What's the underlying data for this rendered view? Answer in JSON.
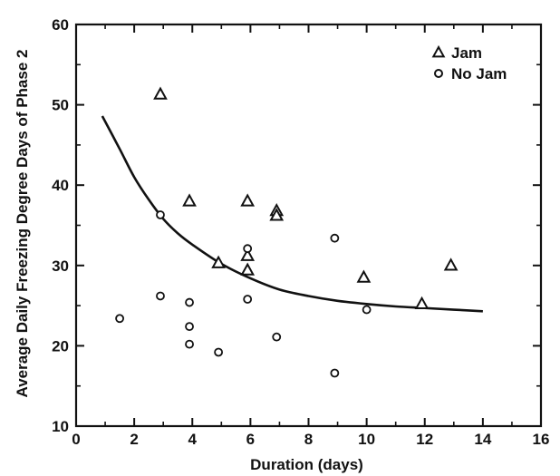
{
  "chart_data": {
    "type": "scatter",
    "xlabel": "Duration (days)",
    "ylabel": "Average Daily Freezing Degree Days of Phase 2",
    "xlim": [
      0,
      16
    ],
    "ylim": [
      10,
      60
    ],
    "x_ticks": [
      0,
      2,
      4,
      6,
      8,
      10,
      12,
      14,
      16
    ],
    "y_ticks": [
      10,
      20,
      30,
      40,
      50,
      60
    ],
    "x_tick_labels": [
      "0",
      "2",
      "4",
      "6",
      "8",
      "10",
      "12",
      "14",
      "16"
    ],
    "y_tick_labels": [
      "10",
      "20",
      "30",
      "40",
      "50",
      "60"
    ],
    "grid": false,
    "legend_position": "top-right",
    "series": [
      {
        "name": "Jam",
        "marker": "triangle",
        "points": [
          {
            "x": 2.9,
            "y": 51.3
          },
          {
            "x": 3.9,
            "y": 38.0
          },
          {
            "x": 4.9,
            "y": 30.3
          },
          {
            "x": 5.9,
            "y": 38.0
          },
          {
            "x": 5.9,
            "y": 31.2
          },
          {
            "x": 5.9,
            "y": 29.4
          },
          {
            "x": 6.9,
            "y": 36.8
          },
          {
            "x": 6.9,
            "y": 36.2
          },
          {
            "x": 9.9,
            "y": 28.5
          },
          {
            "x": 11.9,
            "y": 25.2
          },
          {
            "x": 12.9,
            "y": 30.0
          }
        ]
      },
      {
        "name": "No Jam",
        "marker": "circle",
        "points": [
          {
            "x": 1.5,
            "y": 23.4
          },
          {
            "x": 2.9,
            "y": 36.3
          },
          {
            "x": 2.9,
            "y": 26.2
          },
          {
            "x": 3.9,
            "y": 25.4
          },
          {
            "x": 3.9,
            "y": 22.4
          },
          {
            "x": 3.9,
            "y": 20.2
          },
          {
            "x": 4.9,
            "y": 19.2
          },
          {
            "x": 5.9,
            "y": 32.1
          },
          {
            "x": 5.9,
            "y": 25.8
          },
          {
            "x": 6.9,
            "y": 21.1
          },
          {
            "x": 8.9,
            "y": 33.4
          },
          {
            "x": 8.9,
            "y": 16.6
          },
          {
            "x": 10.0,
            "y": 24.5
          }
        ]
      }
    ],
    "fit_curve": {
      "points": [
        {
          "x": 0.9,
          "y": 48.6
        },
        {
          "x": 1.5,
          "y": 44.5
        },
        {
          "x": 2.0,
          "y": 41.0
        },
        {
          "x": 2.5,
          "y": 38.2
        },
        {
          "x": 3.0,
          "y": 35.8
        },
        {
          "x": 3.5,
          "y": 34.0
        },
        {
          "x": 4.0,
          "y": 32.6
        },
        {
          "x": 5.0,
          "y": 30.2
        },
        {
          "x": 6.0,
          "y": 28.4
        },
        {
          "x": 7.0,
          "y": 27.0
        },
        {
          "x": 8.0,
          "y": 26.2
        },
        {
          "x": 9.0,
          "y": 25.6
        },
        {
          "x": 10.0,
          "y": 25.2
        },
        {
          "x": 11.0,
          "y": 24.9
        },
        {
          "x": 12.0,
          "y": 24.7
        },
        {
          "x": 13.0,
          "y": 24.5
        },
        {
          "x": 14.0,
          "y": 24.3
        }
      ]
    }
  }
}
